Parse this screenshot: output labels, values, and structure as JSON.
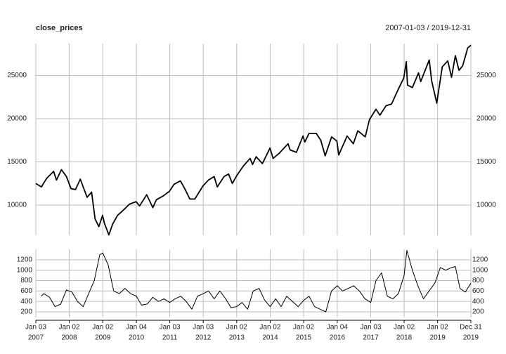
{
  "chart_data": [
    {
      "type": "line",
      "title": "close_prices",
      "subtitle": "2007-01-03 / 2019-12-31",
      "color": "#000000",
      "grid": true,
      "xlim": [
        "2007-01-03",
        "2019-12-31"
      ],
      "ylim": [
        6500,
        28700
      ],
      "yticks": [
        10000,
        15000,
        20000,
        25000
      ],
      "x": [
        "2007-01-03",
        "2007-03-05",
        "2007-05-01",
        "2007-07-16",
        "2007-08-16",
        "2007-10-09",
        "2007-12-03",
        "2008-01-22",
        "2008-03-10",
        "2008-05-02",
        "2008-07-15",
        "2008-09-02",
        "2008-10-10",
        "2008-11-20",
        "2008-12-31",
        "2009-01-20",
        "2009-03-09",
        "2009-04-20",
        "2009-06-12",
        "2009-08-03",
        "2009-10-20",
        "2009-12-31",
        "2010-02-08",
        "2010-04-26",
        "2010-07-02",
        "2010-08-09",
        "2010-10-29",
        "2010-12-31",
        "2011-02-18",
        "2011-04-29",
        "2011-06-15",
        "2011-08-10",
        "2011-10-03",
        "2011-12-30",
        "2012-02-29",
        "2012-05-01",
        "2012-06-04",
        "2012-08-17",
        "2012-10-05",
        "2012-11-15",
        "2013-01-02",
        "2013-03-14",
        "2013-05-28",
        "2013-06-24",
        "2013-08-02",
        "2013-10-09",
        "2013-12-31",
        "2014-02-03",
        "2014-04-11",
        "2014-07-16",
        "2014-08-07",
        "2014-10-15",
        "2014-12-26",
        "2015-01-15",
        "2015-03-02",
        "2015-05-19",
        "2015-07-08",
        "2015-08-25",
        "2015-11-03",
        "2015-12-31",
        "2016-01-20",
        "2016-04-20",
        "2016-06-27",
        "2016-08-15",
        "2016-11-04",
        "2016-12-20",
        "2017-03-01",
        "2017-04-13",
        "2017-06-19",
        "2017-08-18",
        "2017-10-30",
        "2017-12-29",
        "2018-01-26",
        "2018-02-08",
        "2018-04-02",
        "2018-06-08",
        "2018-07-02",
        "2018-10-03",
        "2018-10-29",
        "2018-12-24",
        "2019-02-22",
        "2019-04-23",
        "2019-06-03",
        "2019-07-15",
        "2019-08-23",
        "2019-10-02",
        "2019-11-27",
        "2019-12-31"
      ],
      "values": [
        12500,
        12100,
        13100,
        13900,
        12900,
        14100,
        13300,
        11900,
        11800,
        13000,
        10900,
        11500,
        8400,
        7500,
        8800,
        7900,
        6550,
        7800,
        8800,
        9300,
        10100,
        10400,
        9900,
        11200,
        9700,
        10600,
        11100,
        11600,
        12400,
        12800,
        11900,
        10700,
        10700,
        12200,
        12900,
        13300,
        12100,
        13300,
        13600,
        12500,
        13400,
        14500,
        15400,
        14700,
        15600,
        14800,
        16600,
        15400,
        16000,
        17100,
        16400,
        16100,
        18000,
        17300,
        18300,
        18300,
        17500,
        15700,
        17900,
        17400,
        15800,
        18000,
        17100,
        18600,
        17900,
        19900,
        21100,
        20400,
        21500,
        21700,
        23400,
        24700,
        26600,
        23900,
        23600,
        25300,
        24300,
        26800,
        24400,
        21800,
        26000,
        26700,
        24800,
        27300,
        25600,
        26100,
        28200,
        28500
      ]
    },
    {
      "type": "line",
      "color": "#000000",
      "grid": true,
      "xlim": [
        "2007-01-03",
        "2019-12-31"
      ],
      "ylim": [
        92,
        1400
      ],
      "yticks": [
        200,
        400,
        600,
        800,
        1000,
        1200
      ],
      "xticks": [
        {
          "value": "2007-01-03",
          "label": [
            "Jan 03",
            "2007"
          ]
        },
        {
          "value": "2008-01-02",
          "label": [
            "Jan 02",
            "2008"
          ]
        },
        {
          "value": "2009-01-02",
          "label": [
            "Jan 02",
            "2009"
          ]
        },
        {
          "value": "2010-01-04",
          "label": [
            "Jan 04",
            "2010"
          ]
        },
        {
          "value": "2011-01-03",
          "label": [
            "Jan 03",
            "2011"
          ]
        },
        {
          "value": "2012-01-03",
          "label": [
            "Jan 03",
            "2012"
          ]
        },
        {
          "value": "2013-01-02",
          "label": [
            "Jan 02",
            "2013"
          ]
        },
        {
          "value": "2014-01-02",
          "label": [
            "Jan 02",
            "2014"
          ]
        },
        {
          "value": "2015-01-02",
          "label": [
            "Jan 02",
            "2015"
          ]
        },
        {
          "value": "2016-01-04",
          "label": [
            "Jan 04",
            "2016"
          ]
        },
        {
          "value": "2017-01-03",
          "label": [
            "Jan 03",
            "2017"
          ]
        },
        {
          "value": "2018-01-02",
          "label": [
            "Jan 02",
            "2018"
          ]
        },
        {
          "value": "2019-01-02",
          "label": [
            "Jan 02",
            "2019"
          ]
        },
        {
          "value": "2019-12-31",
          "label": [
            "Dec 31",
            "2019"
          ]
        }
      ],
      "x": [
        "2007-03-01",
        "2007-04-02",
        "2007-06-01",
        "2007-08-01",
        "2007-10-01",
        "2007-12-03",
        "2008-02-01",
        "2008-04-01",
        "2008-06-02",
        "2008-08-01",
        "2008-10-01",
        "2008-12-01",
        "2009-01-02",
        "2009-03-02",
        "2009-05-01",
        "2009-07-01",
        "2009-09-01",
        "2009-11-02",
        "2010-01-04",
        "2010-03-01",
        "2010-05-03",
        "2010-07-01",
        "2010-09-01",
        "2010-11-01",
        "2011-01-03",
        "2011-03-01",
        "2011-05-02",
        "2011-07-01",
        "2011-09-01",
        "2011-11-01",
        "2012-01-03",
        "2012-03-01",
        "2012-05-01",
        "2012-07-02",
        "2012-09-04",
        "2012-11-01",
        "2013-01-02",
        "2013-03-01",
        "2013-05-01",
        "2013-07-01",
        "2013-09-03",
        "2013-11-01",
        "2014-01-02",
        "2014-03-03",
        "2014-05-01",
        "2014-07-01",
        "2014-09-02",
        "2014-11-03",
        "2015-01-02",
        "2015-03-02",
        "2015-05-01",
        "2015-07-01",
        "2015-09-01",
        "2015-11-02",
        "2016-01-04",
        "2016-03-01",
        "2016-05-02",
        "2016-07-01",
        "2016-09-01",
        "2016-11-01",
        "2017-01-03",
        "2017-03-01",
        "2017-05-01",
        "2017-07-03",
        "2017-09-01",
        "2017-11-01",
        "2018-01-02",
        "2018-02-01",
        "2018-04-02",
        "2018-06-01",
        "2018-08-01",
        "2018-10-01",
        "2018-12-03",
        "2019-02-01",
        "2019-04-01",
        "2019-06-03",
        "2019-07-15",
        "2019-09-03",
        "2019-11-01",
        "2019-12-31"
      ],
      "values": [
        500,
        550,
        480,
        300,
        350,
        620,
        580,
        400,
        300,
        550,
        800,
        1300,
        1330,
        1100,
        600,
        550,
        650,
        550,
        500,
        330,
        350,
        480,
        400,
        450,
        380,
        450,
        500,
        400,
        250,
        500,
        550,
        600,
        450,
        600,
        450,
        280,
        300,
        380,
        250,
        600,
        650,
        430,
        300,
        450,
        300,
        500,
        400,
        300,
        420,
        500,
        300,
        250,
        200,
        600,
        700,
        600,
        650,
        700,
        600,
        450,
        380,
        800,
        950,
        500,
        450,
        550,
        900,
        1380,
        1000,
        700,
        450,
        600,
        750,
        1050,
        1000,
        1050,
        1070,
        650,
        580,
        750
      ]
    }
  ]
}
